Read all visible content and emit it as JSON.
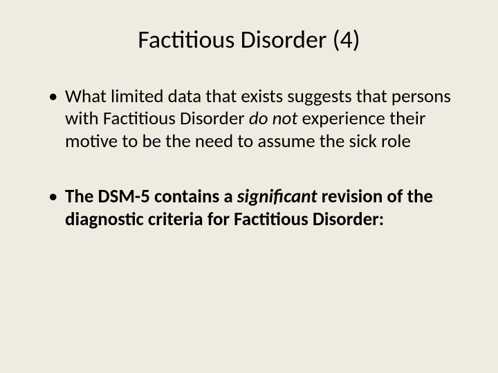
{
  "slide": {
    "title": "Factitious Disorder (4)",
    "background_color": "#eeece1",
    "text_color": "#000000",
    "title_fontsize": 36,
    "body_fontsize": 27,
    "bullets": [
      {
        "segments": [
          {
            "text": "What limited data that exists suggests that persons with Factitious Disorder ",
            "style": "normal"
          },
          {
            "text": "do not",
            "style": "italic"
          },
          {
            "text": " experience their motive to be the need to assume the sick role",
            "style": "normal"
          }
        ]
      },
      {
        "segments": [
          {
            "text": "The DSM-5 contains a ",
            "style": "bold"
          },
          {
            "text": "significant",
            "style": "bold-italic"
          },
          {
            "text": " revision of the diagnostic criteria for Factitious Disorder:",
            "style": "bold"
          }
        ]
      }
    ]
  }
}
